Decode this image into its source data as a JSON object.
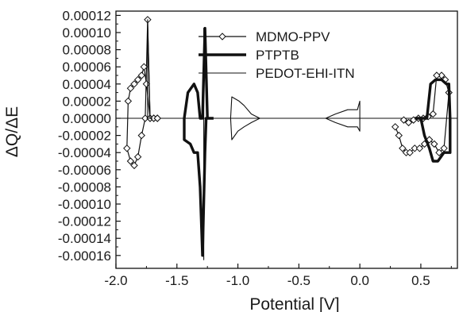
{
  "chart_data": {
    "type": "line",
    "xlabel": "Potential [V]",
    "ylabel": "ΔQ/ΔE",
    "xlim": [
      -2.0,
      0.8
    ],
    "ylim": [
      -0.000175,
      0.000125
    ],
    "x_ticks": [
      -2.0,
      -1.5,
      -1.0,
      -0.5,
      0.0,
      0.5
    ],
    "x_tick_labels": [
      "-2.0",
      "-1.5",
      "-1.0",
      "-0.5",
      "0.0",
      "0.5"
    ],
    "y_ticks": [
      0.00012,
      0.0001,
      8e-05,
      6e-05,
      4e-05,
      2e-05,
      0.0,
      -2e-05,
      -4e-05,
      -6e-05,
      -8e-05,
      -0.0001,
      -0.00012,
      -0.00014,
      -0.00016
    ],
    "y_tick_labels": [
      "0.00012",
      "0.00010",
      "0.00008",
      "0.00006",
      "0.00004",
      "0.00002",
      "0.00000",
      "-0.00002",
      "-0.00004",
      "-0.00006",
      "-0.00008",
      "-0.00010",
      "-0.00012",
      "-0.00014",
      "-0.00016"
    ],
    "grid": false,
    "legend_position": "top-center",
    "baseline": 0.0,
    "series": [
      {
        "name": "MDMO-PPV",
        "style": "line-diamond",
        "color": "#111111",
        "segments": [
          [
            [
              -1.66,
              0.0
            ],
            [
              -1.69,
              0.0
            ],
            [
              -1.72,
              0.0
            ],
            [
              -1.75,
              4e-05
            ],
            [
              -1.77,
              6e-05
            ],
            [
              -1.79,
              5e-05
            ],
            [
              -1.82,
              4.5e-05
            ],
            [
              -1.85,
              4e-05
            ],
            [
              -1.88,
              3.5e-05
            ],
            [
              -1.9,
              2e-05
            ],
            [
              -1.91,
              -3.5e-05
            ],
            [
              -1.88,
              -5e-05
            ],
            [
              -1.85,
              -5.5e-05
            ],
            [
              -1.82,
              -4.5e-05
            ],
            [
              -1.79,
              -2e-05
            ],
            [
              -1.76,
              0.0
            ],
            [
              -1.74,
              0.000115
            ],
            [
              -1.72,
              0.0
            ],
            [
              -1.69,
              0.0
            ],
            [
              -1.66,
              0.0
            ]
          ],
          [
            [
              0.29,
              -1e-05
            ],
            [
              0.32,
              -2e-05
            ],
            [
              0.35,
              -3.5e-05
            ],
            [
              0.38,
              -4e-05
            ],
            [
              0.41,
              -4e-05
            ],
            [
              0.45,
              -3.5e-05
            ],
            [
              0.49,
              -3.5e-05
            ],
            [
              0.53,
              -3e-05
            ],
            [
              0.57,
              -2.5e-05
            ],
            [
              0.61,
              -3e-05
            ],
            [
              0.65,
              -4e-05
            ],
            [
              0.69,
              -3.5e-05
            ],
            [
              0.73,
              3e-05
            ],
            [
              0.7,
              4.5e-05
            ],
            [
              0.67,
              5e-05
            ],
            [
              0.63,
              5e-05
            ],
            [
              0.6,
              5e-06
            ],
            [
              0.56,
              2e-06
            ],
            [
              0.52,
              0.0
            ],
            [
              0.48,
              0.0
            ],
            [
              0.44,
              -2e-06
            ],
            [
              0.4,
              -5e-06
            ],
            [
              0.36,
              -2e-06
            ]
          ]
        ]
      },
      {
        "name": "PTPTB",
        "style": "thick-line",
        "color": "#111111",
        "segments": [
          [
            [
              -1.2,
              0.0
            ],
            [
              -1.25,
              0.0
            ],
            [
              -1.27,
              0.000105
            ],
            [
              -1.29,
              0.0
            ],
            [
              -1.31,
              0.0
            ],
            [
              -1.33,
              3e-05
            ],
            [
              -1.36,
              4e-05
            ],
            [
              -1.41,
              3e-05
            ],
            [
              -1.44,
              0.0
            ],
            [
              -1.44,
              -2.5e-05
            ],
            [
              -1.39,
              -3e-05
            ],
            [
              -1.36,
              -4e-05
            ],
            [
              -1.33,
              -4e-05
            ],
            [
              -1.31,
              -8e-05
            ],
            [
              -1.29,
              -0.00016
            ],
            [
              -1.27,
              -4e-05
            ],
            [
              -1.26,
              0.0
            ],
            [
              -1.2,
              0.0
            ]
          ],
          [
            [
              0.45,
              0.0
            ],
            [
              0.55,
              0.0
            ],
            [
              0.58,
              4e-05
            ],
            [
              0.62,
              4.5e-05
            ],
            [
              0.67,
              4.5e-05
            ],
            [
              0.71,
              4e-05
            ],
            [
              0.73,
              4e-05
            ],
            [
              0.74,
              0.0
            ],
            [
              0.74,
              -4e-05
            ],
            [
              0.69,
              -4e-05
            ],
            [
              0.64,
              -5e-05
            ],
            [
              0.6,
              -5e-05
            ],
            [
              0.57,
              -3.5e-05
            ],
            [
              0.53,
              -2e-05
            ],
            [
              0.5,
              0.0
            ]
          ]
        ]
      },
      {
        "name": "PEDOT-EHI-ITN",
        "style": "thin-line",
        "color": "#111111",
        "segments": [
          [
            [
              -1.7,
              0.0
            ],
            [
              -1.74,
              0.0
            ],
            [
              -1.74,
              0.000115
            ],
            [
              -1.72,
              0.0
            ]
          ],
          [
            [
              -1.28,
              0.0
            ],
            [
              -1.28,
              0.000105
            ],
            [
              -1.28,
              -0.000165
            ],
            [
              -1.28,
              0.0
            ]
          ],
          [
            [
              -1.06,
              0.0
            ],
            [
              -1.05,
              2.5e-05
            ],
            [
              -0.99,
              2e-05
            ],
            [
              -0.95,
              1.5e-05
            ],
            [
              -0.89,
              5e-06
            ],
            [
              -0.82,
              0.0
            ],
            [
              -0.75,
              0.0
            ],
            [
              -0.82,
              0.0
            ],
            [
              -0.89,
              -5e-06
            ],
            [
              -0.95,
              -1e-05
            ],
            [
              -1.0,
              -1.5e-05
            ],
            [
              -1.05,
              -2.5e-05
            ],
            [
              -1.06,
              0.0
            ]
          ],
          [
            [
              -0.28,
              0.0
            ],
            [
              -0.2,
              5e-06
            ],
            [
              -0.1,
              1e-05
            ],
            [
              -0.02,
              1e-05
            ],
            [
              0.0,
              2e-05
            ],
            [
              0.0,
              -1.5e-05
            ],
            [
              -0.02,
              -1e-05
            ],
            [
              -0.1,
              -1e-05
            ],
            [
              -0.2,
              -5e-06
            ],
            [
              -0.28,
              0.0
            ]
          ]
        ]
      }
    ]
  }
}
